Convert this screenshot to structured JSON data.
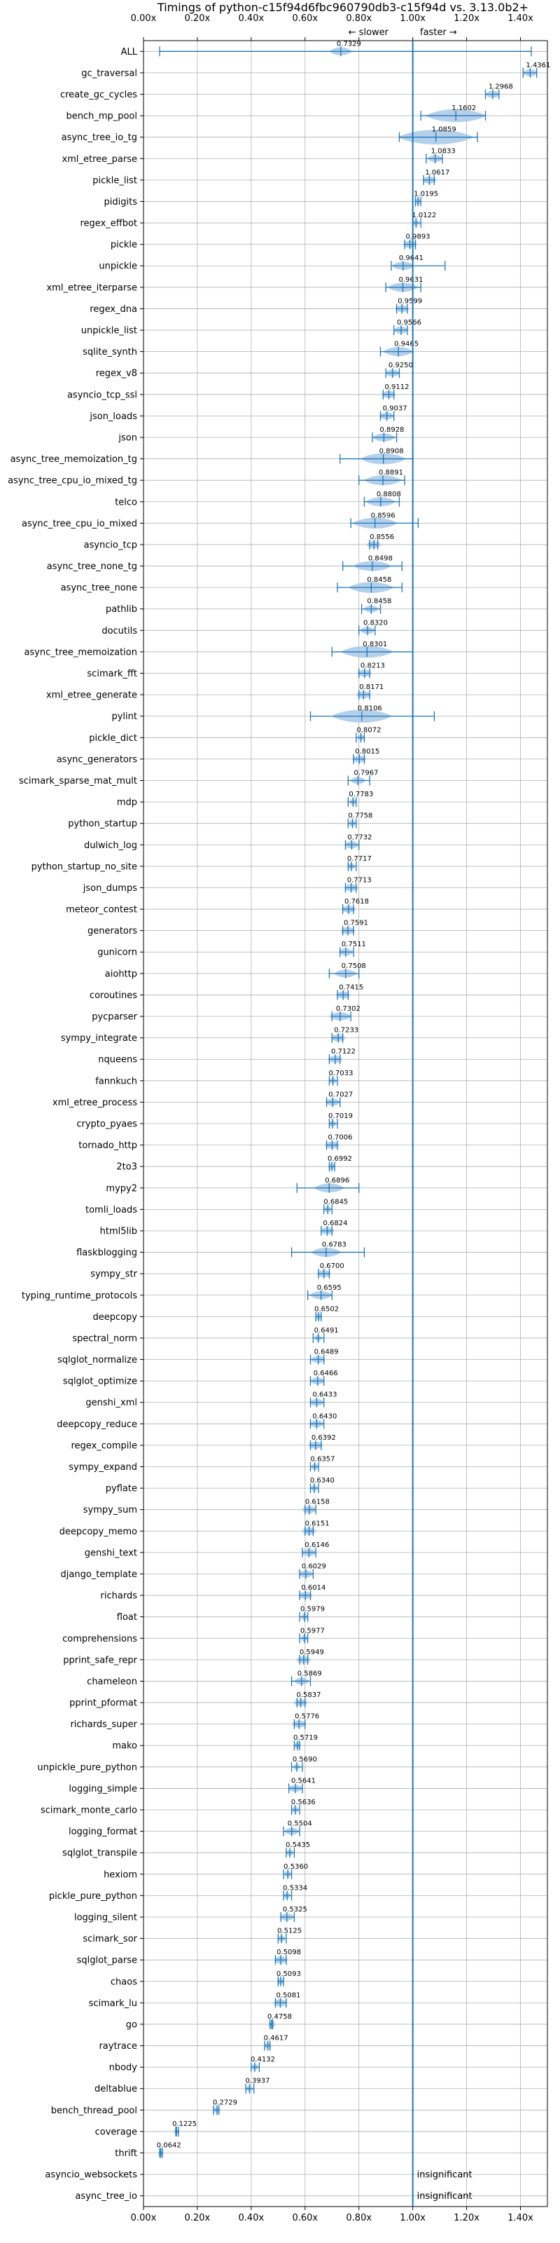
{
  "chart_data": {
    "type": "violin",
    "title": "Timings of python-c15f94d6fbc960790db3-c15f94d vs. 3.13.0b2+",
    "slower_label": "← slower",
    "faster_label": "faster →",
    "xlim": [
      0.0,
      1.5
    ],
    "xticks": [
      "0.00x",
      "0.20x",
      "0.40x",
      "0.60x",
      "0.80x",
      "1.00x",
      "1.20x",
      "1.40x"
    ],
    "xtick_values": [
      0.0,
      0.2,
      0.4,
      0.6,
      0.8,
      1.0,
      1.2,
      1.4
    ],
    "reference_line": 1.0,
    "grid": true,
    "insignificant_label": "insignificant",
    "benchmarks": [
      {
        "name": "ALL",
        "value": 0.7329,
        "lo": 0.06,
        "hi": 1.44,
        "spread": 0.03
      },
      {
        "name": "gc_traversal",
        "value": 1.4361,
        "lo": 1.41,
        "hi": 1.46,
        "spread": 0.02
      },
      {
        "name": "create_gc_cycles",
        "value": 1.2968,
        "lo": 1.27,
        "hi": 1.32,
        "spread": 0.02
      },
      {
        "name": "bench_mp_pool",
        "value": 1.1602,
        "lo": 1.03,
        "hi": 1.27,
        "spread": 0.08
      },
      {
        "name": "async_tree_io_tg",
        "value": 1.0859,
        "lo": 0.95,
        "hi": 1.24,
        "spread": 0.1
      },
      {
        "name": "xml_etree_parse",
        "value": 1.0833,
        "lo": 1.05,
        "hi": 1.11,
        "spread": 0.02
      },
      {
        "name": "pickle_list",
        "value": 1.0617,
        "lo": 1.04,
        "hi": 1.08,
        "spread": 0.02
      },
      {
        "name": "pidigits",
        "value": 1.0195,
        "lo": 1.01,
        "hi": 1.03,
        "spread": 0.01
      },
      {
        "name": "regex_effbot",
        "value": 1.0122,
        "lo": 1.0,
        "hi": 1.03,
        "spread": 0.01
      },
      {
        "name": "pickle",
        "value": 0.9893,
        "lo": 0.97,
        "hi": 1.01,
        "spread": 0.02
      },
      {
        "name": "unpickle",
        "value": 0.9641,
        "lo": 0.92,
        "hi": 1.12,
        "spread": 0.03
      },
      {
        "name": "xml_etree_iterparse",
        "value": 0.9631,
        "lo": 0.9,
        "hi": 1.03,
        "spread": 0.04
      },
      {
        "name": "regex_dna",
        "value": 0.9599,
        "lo": 0.94,
        "hi": 0.98,
        "spread": 0.02
      },
      {
        "name": "unpickle_list",
        "value": 0.9566,
        "lo": 0.93,
        "hi": 0.98,
        "spread": 0.02
      },
      {
        "name": "sqlite_synth",
        "value": 0.9465,
        "lo": 0.88,
        "hi": 1.0,
        "spread": 0.04
      },
      {
        "name": "regex_v8",
        "value": 0.925,
        "lo": 0.9,
        "hi": 0.95,
        "spread": 0.02
      },
      {
        "name": "asyncio_tcp_ssl",
        "value": 0.9112,
        "lo": 0.89,
        "hi": 0.93,
        "spread": 0.02
      },
      {
        "name": "json_loads",
        "value": 0.9037,
        "lo": 0.88,
        "hi": 0.93,
        "spread": 0.02
      },
      {
        "name": "json",
        "value": 0.8928,
        "lo": 0.85,
        "hi": 0.94,
        "spread": 0.03
      },
      {
        "name": "async_tree_memoization_tg",
        "value": 0.8908,
        "lo": 0.73,
        "hi": 1.0,
        "spread": 0.06
      },
      {
        "name": "async_tree_cpu_io_mixed_tg",
        "value": 0.8891,
        "lo": 0.8,
        "hi": 0.97,
        "spread": 0.05
      },
      {
        "name": "telco",
        "value": 0.8808,
        "lo": 0.82,
        "hi": 0.95,
        "spread": 0.04
      },
      {
        "name": "async_tree_cpu_io_mixed",
        "value": 0.8596,
        "lo": 0.77,
        "hi": 1.02,
        "spread": 0.06
      },
      {
        "name": "asyncio_tcp",
        "value": 0.8556,
        "lo": 0.84,
        "hi": 0.87,
        "spread": 0.02
      },
      {
        "name": "async_tree_none_tg",
        "value": 0.8498,
        "lo": 0.74,
        "hi": 0.96,
        "spread": 0.05
      },
      {
        "name": "async_tree_none",
        "value": 0.8458,
        "lo": 0.72,
        "hi": 0.96,
        "spread": 0.06
      },
      {
        "name": "pathlib",
        "value": 0.8458,
        "lo": 0.81,
        "hi": 0.88,
        "spread": 0.02
      },
      {
        "name": "docutils",
        "value": 0.832,
        "lo": 0.8,
        "hi": 0.86,
        "spread": 0.02
      },
      {
        "name": "async_tree_memoization",
        "value": 0.8301,
        "lo": 0.7,
        "hi": 1.0,
        "spread": 0.07
      },
      {
        "name": "scimark_fft",
        "value": 0.8213,
        "lo": 0.8,
        "hi": 0.84,
        "spread": 0.02
      },
      {
        "name": "xml_etree_generate",
        "value": 0.8171,
        "lo": 0.8,
        "hi": 0.84,
        "spread": 0.02
      },
      {
        "name": "pylint",
        "value": 0.8106,
        "lo": 0.62,
        "hi": 1.08,
        "spread": 0.08
      },
      {
        "name": "pickle_dict",
        "value": 0.8072,
        "lo": 0.79,
        "hi": 0.82,
        "spread": 0.01
      },
      {
        "name": "async_generators",
        "value": 0.8015,
        "lo": 0.78,
        "hi": 0.82,
        "spread": 0.02
      },
      {
        "name": "scimark_sparse_mat_mult",
        "value": 0.7967,
        "lo": 0.76,
        "hi": 0.84,
        "spread": 0.02
      },
      {
        "name": "mdp",
        "value": 0.7783,
        "lo": 0.76,
        "hi": 0.79,
        "spread": 0.01
      },
      {
        "name": "python_startup",
        "value": 0.7758,
        "lo": 0.76,
        "hi": 0.79,
        "spread": 0.01
      },
      {
        "name": "dulwich_log",
        "value": 0.7732,
        "lo": 0.75,
        "hi": 0.8,
        "spread": 0.02
      },
      {
        "name": "python_startup_no_site",
        "value": 0.7717,
        "lo": 0.76,
        "hi": 0.79,
        "spread": 0.01
      },
      {
        "name": "json_dumps",
        "value": 0.7713,
        "lo": 0.75,
        "hi": 0.79,
        "spread": 0.02
      },
      {
        "name": "meteor_contest",
        "value": 0.7618,
        "lo": 0.74,
        "hi": 0.78,
        "spread": 0.02
      },
      {
        "name": "generators",
        "value": 0.7591,
        "lo": 0.74,
        "hi": 0.78,
        "spread": 0.02
      },
      {
        "name": "gunicorn",
        "value": 0.7511,
        "lo": 0.73,
        "hi": 0.78,
        "spread": 0.02
      },
      {
        "name": "aiohttp",
        "value": 0.7508,
        "lo": 0.69,
        "hi": 0.8,
        "spread": 0.03
      },
      {
        "name": "coroutines",
        "value": 0.7415,
        "lo": 0.72,
        "hi": 0.76,
        "spread": 0.02
      },
      {
        "name": "pycparser",
        "value": 0.7302,
        "lo": 0.7,
        "hi": 0.77,
        "spread": 0.03
      },
      {
        "name": "sympy_integrate",
        "value": 0.7233,
        "lo": 0.7,
        "hi": 0.74,
        "spread": 0.02
      },
      {
        "name": "nqueens",
        "value": 0.7122,
        "lo": 0.69,
        "hi": 0.73,
        "spread": 0.02
      },
      {
        "name": "fannkuch",
        "value": 0.7033,
        "lo": 0.69,
        "hi": 0.72,
        "spread": 0.01
      },
      {
        "name": "xml_etree_process",
        "value": 0.7027,
        "lo": 0.68,
        "hi": 0.73,
        "spread": 0.02
      },
      {
        "name": "crypto_pyaes",
        "value": 0.7019,
        "lo": 0.69,
        "hi": 0.72,
        "spread": 0.01
      },
      {
        "name": "tornado_http",
        "value": 0.7006,
        "lo": 0.68,
        "hi": 0.72,
        "spread": 0.02
      },
      {
        "name": "2to3",
        "value": 0.6992,
        "lo": 0.69,
        "hi": 0.71,
        "spread": 0.01
      },
      {
        "name": "mypy2",
        "value": 0.6896,
        "lo": 0.57,
        "hi": 0.8,
        "spread": 0.04
      },
      {
        "name": "tomli_loads",
        "value": 0.6845,
        "lo": 0.67,
        "hi": 0.7,
        "spread": 0.01
      },
      {
        "name": "html5lib",
        "value": 0.6824,
        "lo": 0.66,
        "hi": 0.7,
        "spread": 0.02
      },
      {
        "name": "flaskblogging",
        "value": 0.6783,
        "lo": 0.55,
        "hi": 0.82,
        "spread": 0.04
      },
      {
        "name": "sympy_str",
        "value": 0.67,
        "lo": 0.65,
        "hi": 0.69,
        "spread": 0.02
      },
      {
        "name": "typing_runtime_protocols",
        "value": 0.6595,
        "lo": 0.61,
        "hi": 0.7,
        "spread": 0.03
      },
      {
        "name": "deepcopy",
        "value": 0.6502,
        "lo": 0.64,
        "hi": 0.66,
        "spread": 0.01
      },
      {
        "name": "spectral_norm",
        "value": 0.6491,
        "lo": 0.63,
        "hi": 0.67,
        "spread": 0.01
      },
      {
        "name": "sqlglot_normalize",
        "value": 0.6489,
        "lo": 0.62,
        "hi": 0.67,
        "spread": 0.02
      },
      {
        "name": "sqlglot_optimize",
        "value": 0.6466,
        "lo": 0.62,
        "hi": 0.67,
        "spread": 0.02
      },
      {
        "name": "genshi_xml",
        "value": 0.6433,
        "lo": 0.62,
        "hi": 0.67,
        "spread": 0.02
      },
      {
        "name": "deepcopy_reduce",
        "value": 0.643,
        "lo": 0.62,
        "hi": 0.67,
        "spread": 0.02
      },
      {
        "name": "regex_compile",
        "value": 0.6392,
        "lo": 0.62,
        "hi": 0.66,
        "spread": 0.02
      },
      {
        "name": "sympy_expand",
        "value": 0.6357,
        "lo": 0.62,
        "hi": 0.65,
        "spread": 0.01
      },
      {
        "name": "pyflate",
        "value": 0.634,
        "lo": 0.62,
        "hi": 0.65,
        "spread": 0.01
      },
      {
        "name": "sympy_sum",
        "value": 0.6158,
        "lo": 0.6,
        "hi": 0.64,
        "spread": 0.02
      },
      {
        "name": "deepcopy_memo",
        "value": 0.6151,
        "lo": 0.6,
        "hi": 0.63,
        "spread": 0.02
      },
      {
        "name": "genshi_text",
        "value": 0.6146,
        "lo": 0.59,
        "hi": 0.64,
        "spread": 0.02
      },
      {
        "name": "django_template",
        "value": 0.6029,
        "lo": 0.58,
        "hi": 0.63,
        "spread": 0.02
      },
      {
        "name": "richards",
        "value": 0.6014,
        "lo": 0.58,
        "hi": 0.62,
        "spread": 0.02
      },
      {
        "name": "float",
        "value": 0.5979,
        "lo": 0.58,
        "hi": 0.61,
        "spread": 0.01
      },
      {
        "name": "comprehensions",
        "value": 0.5977,
        "lo": 0.58,
        "hi": 0.61,
        "spread": 0.01
      },
      {
        "name": "pprint_safe_repr",
        "value": 0.5949,
        "lo": 0.58,
        "hi": 0.61,
        "spread": 0.02
      },
      {
        "name": "chameleon",
        "value": 0.5869,
        "lo": 0.55,
        "hi": 0.62,
        "spread": 0.02
      },
      {
        "name": "pprint_pformat",
        "value": 0.5837,
        "lo": 0.57,
        "hi": 0.6,
        "spread": 0.02
      },
      {
        "name": "richards_super",
        "value": 0.5776,
        "lo": 0.56,
        "hi": 0.6,
        "spread": 0.02
      },
      {
        "name": "mako",
        "value": 0.5719,
        "lo": 0.56,
        "hi": 0.58,
        "spread": 0.01
      },
      {
        "name": "unpickle_pure_python",
        "value": 0.569,
        "lo": 0.55,
        "hi": 0.59,
        "spread": 0.01
      },
      {
        "name": "logging_simple",
        "value": 0.5641,
        "lo": 0.54,
        "hi": 0.59,
        "spread": 0.02
      },
      {
        "name": "scimark_monte_carlo",
        "value": 0.5636,
        "lo": 0.55,
        "hi": 0.58,
        "spread": 0.01
      },
      {
        "name": "logging_format",
        "value": 0.5504,
        "lo": 0.52,
        "hi": 0.58,
        "spread": 0.02
      },
      {
        "name": "sqlglot_transpile",
        "value": 0.5435,
        "lo": 0.53,
        "hi": 0.56,
        "spread": 0.01
      },
      {
        "name": "hexiom",
        "value": 0.536,
        "lo": 0.52,
        "hi": 0.55,
        "spread": 0.01
      },
      {
        "name": "pickle_pure_python",
        "value": 0.5334,
        "lo": 0.52,
        "hi": 0.55,
        "spread": 0.01
      },
      {
        "name": "logging_silent",
        "value": 0.5325,
        "lo": 0.51,
        "hi": 0.56,
        "spread": 0.02
      },
      {
        "name": "scimark_sor",
        "value": 0.5125,
        "lo": 0.5,
        "hi": 0.53,
        "spread": 0.01
      },
      {
        "name": "sqlglot_parse",
        "value": 0.5098,
        "lo": 0.49,
        "hi": 0.53,
        "spread": 0.02
      },
      {
        "name": "chaos",
        "value": 0.5093,
        "lo": 0.5,
        "hi": 0.52,
        "spread": 0.01
      },
      {
        "name": "scimark_lu",
        "value": 0.5081,
        "lo": 0.49,
        "hi": 0.53,
        "spread": 0.02
      },
      {
        "name": "go",
        "value": 0.4758,
        "lo": 0.47,
        "hi": 0.48,
        "spread": 0.01
      },
      {
        "name": "raytrace",
        "value": 0.4617,
        "lo": 0.45,
        "hi": 0.47,
        "spread": 0.01
      },
      {
        "name": "nbody",
        "value": 0.4132,
        "lo": 0.4,
        "hi": 0.43,
        "spread": 0.01
      },
      {
        "name": "deltablue",
        "value": 0.3937,
        "lo": 0.38,
        "hi": 0.41,
        "spread": 0.01
      },
      {
        "name": "bench_thread_pool",
        "value": 0.2729,
        "lo": 0.26,
        "hi": 0.28,
        "spread": 0.01
      },
      {
        "name": "coverage",
        "value": 0.1225,
        "lo": 0.12,
        "hi": 0.13,
        "spread": 0.005
      },
      {
        "name": "thrift",
        "value": 0.0642,
        "lo": 0.06,
        "hi": 0.07,
        "spread": 0.003
      },
      {
        "name": "asyncio_websockets",
        "value": null,
        "insignificant": true
      },
      {
        "name": "async_tree_io",
        "value": null,
        "insignificant": true
      }
    ],
    "colors": {
      "violin": "#a8c8e8",
      "line": "#1f77b4",
      "grid": "#b0b0b0",
      "ref": "#1f77b4",
      "median_marker": "#e06060"
    }
  }
}
